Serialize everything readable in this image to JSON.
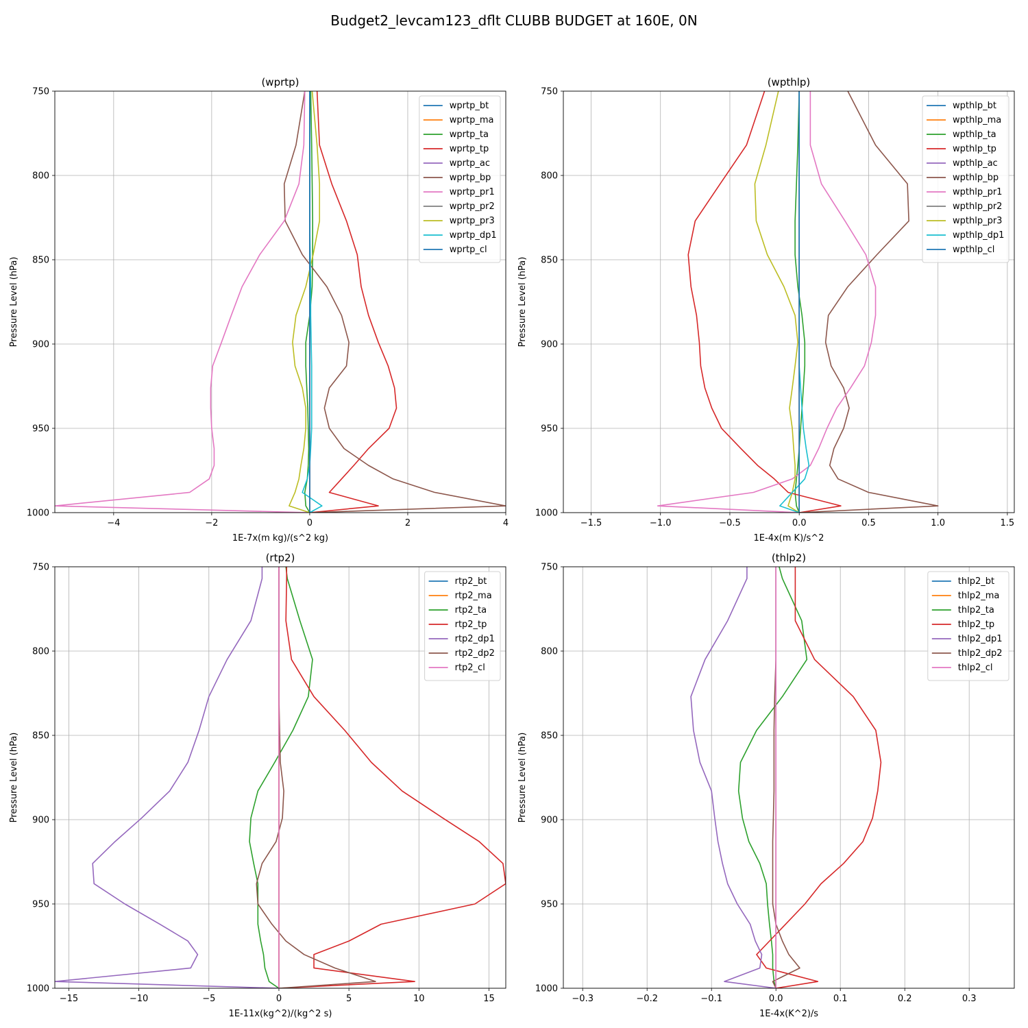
{
  "figure": {
    "title": "Budget2_levcam123_dflt CLUBB BUDGET at 160E, 0N"
  },
  "chart_data": [
    {
      "type": "line",
      "title": "(wprtp)",
      "xlabel": "1E-7x(m kg)/(s^2 kg)",
      "ylabel": "Pressure Level (hPa)",
      "xlim": [
        -5.2,
        4.0
      ],
      "ylim": [
        1000,
        750
      ],
      "xticks": [
        -4,
        -2,
        0,
        2,
        4
      ],
      "yticks": [
        750,
        800,
        850,
        900,
        950,
        1000
      ],
      "grid": true,
      "legend_loc": "upper right",
      "levels": [
        750,
        782,
        805,
        827,
        847,
        866,
        883,
        899,
        913,
        926,
        938,
        950,
        962,
        972,
        980,
        988,
        996,
        1000
      ],
      "series": [
        {
          "name": "wprtp_bt",
          "color": "#1f77b4",
          "values": [
            0,
            0,
            0,
            0,
            0,
            0,
            0,
            0,
            0,
            0,
            0,
            0,
            0,
            0,
            0,
            0,
            0,
            0
          ]
        },
        {
          "name": "wprtp_ma",
          "color": "#ff7f0e",
          "values": [
            0,
            0,
            0,
            0,
            0,
            0,
            0,
            0,
            0,
            0,
            0,
            0,
            0,
            0,
            0,
            0,
            0,
            0
          ]
        },
        {
          "name": "wprtp_ta",
          "color": "#2ca02c",
          "values": [
            0.02,
            0.04,
            0.05,
            0.06,
            0.06,
            0.05,
            0.0,
            -0.08,
            -0.08,
            -0.06,
            -0.04,
            -0.03,
            -0.02,
            -0.03,
            -0.05,
            -0.1,
            -0.08,
            0
          ]
        },
        {
          "name": "wprtp_tp",
          "color": "#d62728",
          "values": [
            0.15,
            0.2,
            0.45,
            0.75,
            0.97,
            1.05,
            1.2,
            1.4,
            1.6,
            1.73,
            1.77,
            1.62,
            1.2,
            0.9,
            0.65,
            0.4,
            1.4,
            0
          ]
        },
        {
          "name": "wprtp_ac",
          "color": "#9467bd",
          "values": [
            0,
            0,
            0,
            0,
            0,
            0,
            0,
            0,
            0,
            0,
            0,
            0,
            0,
            0,
            0,
            0,
            0,
            0
          ]
        },
        {
          "name": "wprtp_bp",
          "color": "#8c564b",
          "values": [
            -0.1,
            -0.28,
            -0.52,
            -0.5,
            -0.15,
            0.35,
            0.65,
            0.8,
            0.75,
            0.4,
            0.3,
            0.4,
            0.7,
            1.2,
            1.7,
            2.55,
            4.0,
            0
          ]
        },
        {
          "name": "wprtp_pr1",
          "color": "#e377c2",
          "values": [
            -0.1,
            -0.12,
            -0.22,
            -0.52,
            -1.02,
            -1.38,
            -1.6,
            -1.8,
            -1.98,
            -2.02,
            -2.02,
            -2.0,
            -1.95,
            -1.95,
            -2.05,
            -2.45,
            -5.2,
            0
          ]
        },
        {
          "name": "wprtp_pr2",
          "color": "#7f7f7f",
          "values": [
            0,
            0,
            0,
            0,
            0,
            0,
            0,
            0,
            0,
            0,
            0,
            0,
            0,
            0,
            0,
            0,
            0,
            0
          ]
        },
        {
          "name": "wprtp_pr3",
          "color": "#bcbd22",
          "values": [
            0.05,
            0.15,
            0.2,
            0.2,
            0.07,
            -0.08,
            -0.28,
            -0.35,
            -0.3,
            -0.15,
            -0.08,
            -0.08,
            -0.12,
            -0.18,
            -0.22,
            -0.3,
            -0.42,
            0
          ]
        },
        {
          "name": "wprtp_dp1",
          "color": "#17becf",
          "values": [
            0,
            0,
            0,
            0,
            0.01,
            0.02,
            0.02,
            0.03,
            0.04,
            0.04,
            0.04,
            0.04,
            0.02,
            0.0,
            -0.05,
            -0.15,
            0.25,
            0
          ]
        },
        {
          "name": "wprtp_cl",
          "color": "#1f77b4",
          "values": [
            0,
            0,
            0,
            0,
            0,
            0,
            0,
            0,
            0,
            0,
            0,
            0,
            0,
            0,
            0,
            0,
            0,
            0
          ]
        }
      ]
    },
    {
      "type": "line",
      "title": "(wpthlp)",
      "xlabel": "1E-4x(m K)/s^2",
      "ylabel": "Pressure Level (hPa)",
      "xlim": [
        -1.7,
        1.55
      ],
      "ylim": [
        1000,
        750
      ],
      "xticks": [
        -1.5,
        -1.0,
        -0.5,
        0.0,
        0.5,
        1.0,
        1.5
      ],
      "yticks": [
        750,
        800,
        850,
        900,
        950,
        1000
      ],
      "grid": true,
      "legend_loc": "upper right",
      "levels": [
        750,
        782,
        805,
        827,
        847,
        866,
        883,
        899,
        913,
        926,
        938,
        950,
        962,
        972,
        980,
        988,
        996,
        1000
      ],
      "series": [
        {
          "name": "wpthlp_bt",
          "color": "#1f77b4",
          "values": [
            0,
            0,
            0,
            0,
            0,
            0,
            0,
            0,
            0,
            0,
            0,
            0,
            0,
            0,
            0,
            0,
            0,
            0
          ]
        },
        {
          "name": "wpthlp_ma",
          "color": "#ff7f0e",
          "values": [
            0,
            0,
            0,
            0,
            0,
            0,
            0,
            0,
            0,
            0,
            0,
            0,
            0,
            0,
            0,
            0,
            0,
            0
          ]
        },
        {
          "name": "wpthlp_ta",
          "color": "#2ca02c",
          "values": [
            0,
            -0.01,
            -0.02,
            -0.03,
            -0.03,
            -0.01,
            0.02,
            0.04,
            0.04,
            0.03,
            0.02,
            0.01,
            0.0,
            -0.01,
            -0.02,
            -0.03,
            -0.02,
            0
          ]
        },
        {
          "name": "wpthlp_tp",
          "color": "#d62728",
          "values": [
            -0.25,
            -0.38,
            -0.57,
            -0.75,
            -0.8,
            -0.78,
            -0.74,
            -0.72,
            -0.71,
            -0.68,
            -0.63,
            -0.56,
            -0.42,
            -0.3,
            -0.18,
            -0.08,
            0.3,
            0
          ]
        },
        {
          "name": "wpthlp_ac",
          "color": "#9467bd",
          "values": [
            0,
            0,
            0,
            0,
            0,
            0,
            0,
            0,
            0,
            0,
            0,
            0,
            0,
            0,
            0,
            0,
            0,
            0
          ]
        },
        {
          "name": "wpthlp_bp",
          "color": "#8c564b",
          "values": [
            0.35,
            0.55,
            0.78,
            0.79,
            0.56,
            0.35,
            0.21,
            0.19,
            0.23,
            0.32,
            0.36,
            0.32,
            0.25,
            0.22,
            0.28,
            0.5,
            1.0,
            0
          ]
        },
        {
          "name": "wpthlp_pr1",
          "color": "#e377c2",
          "values": [
            0.08,
            0.08,
            0.16,
            0.33,
            0.48,
            0.55,
            0.55,
            0.52,
            0.47,
            0.37,
            0.27,
            0.2,
            0.14,
            0.08,
            -0.05,
            -0.33,
            -1.02,
            0
          ]
        },
        {
          "name": "wpthlp_pr2",
          "color": "#7f7f7f",
          "values": [
            0,
            0,
            0,
            0,
            0,
            0,
            0,
            0,
            0,
            0,
            0,
            0,
            0,
            0,
            0,
            0,
            0,
            0
          ]
        },
        {
          "name": "wpthlp_pr3",
          "color": "#bcbd22",
          "values": [
            -0.15,
            -0.24,
            -0.32,
            -0.31,
            -0.23,
            -0.11,
            -0.03,
            -0.01,
            -0.03,
            -0.05,
            -0.07,
            -0.05,
            -0.04,
            -0.03,
            -0.03,
            -0.05,
            -0.08,
            0
          ]
        },
        {
          "name": "wpthlp_dp1",
          "color": "#17becf",
          "values": [
            0,
            0,
            0,
            0,
            0,
            0,
            0,
            0,
            0,
            0.01,
            0.02,
            0.03,
            0.05,
            0.07,
            0.04,
            -0.05,
            -0.14,
            0
          ]
        },
        {
          "name": "wpthlp_cl",
          "color": "#1f77b4",
          "values": [
            0,
            0,
            0,
            0,
            0,
            0,
            0,
            0,
            0,
            0,
            0,
            0,
            0,
            0,
            0,
            0,
            0,
            0
          ]
        }
      ]
    },
    {
      "type": "line",
      "title": "(rtp2)",
      "xlabel": "1E-11x(kg^2)/(kg^2 s)",
      "ylabel": "Pressure Level (hPa)",
      "xlim": [
        -16,
        16.2
      ],
      "ylim": [
        1000,
        750
      ],
      "xticks": [
        -15,
        -10,
        -5,
        0,
        5,
        10,
        15
      ],
      "yticks": [
        750,
        800,
        850,
        900,
        950,
        1000
      ],
      "grid": true,
      "legend_loc": "upper right",
      "levels": [
        750,
        757,
        782,
        805,
        827,
        847,
        866,
        883,
        899,
        913,
        926,
        938,
        950,
        962,
        972,
        980,
        988,
        996,
        1000
      ],
      "series": [
        {
          "name": "rtp2_bt",
          "color": "#1f77b4",
          "values": [
            0,
            0,
            0,
            0,
            0,
            0,
            0,
            0,
            0,
            0,
            0,
            0,
            0,
            0,
            0,
            0,
            0,
            0,
            0
          ]
        },
        {
          "name": "rtp2_ma",
          "color": "#ff7f0e",
          "values": [
            0,
            0,
            0,
            0,
            0,
            0,
            0,
            0,
            0,
            0,
            0,
            0,
            0,
            0,
            0,
            0,
            0,
            0,
            0
          ]
        },
        {
          "name": "rtp2_ta",
          "color": "#2ca02c",
          "values": [
            0.5,
            0.6,
            1.5,
            2.4,
            2.1,
            1.0,
            -0.3,
            -1.5,
            -2.0,
            -2.1,
            -1.8,
            -1.5,
            -1.5,
            -1.5,
            -1.3,
            -1.1,
            -1.0,
            -0.7,
            0
          ]
        },
        {
          "name": "rtp2_tp",
          "color": "#d62728",
          "values": [
            0.55,
            0.55,
            0.5,
            0.9,
            2.5,
            4.7,
            6.6,
            8.8,
            11.7,
            14.3,
            16.0,
            16.2,
            14.0,
            7.3,
            5.0,
            2.5,
            2.5,
            9.7,
            0
          ]
        },
        {
          "name": "rtp2_dp1",
          "color": "#9467bd",
          "values": [
            -1.2,
            -1.2,
            -2.0,
            -3.7,
            -5.0,
            -5.7,
            -6.5,
            -7.8,
            -9.8,
            -11.7,
            -13.3,
            -13.2,
            -11.0,
            -8.5,
            -6.5,
            -5.8,
            -6.3,
            -16.0,
            0
          ]
        },
        {
          "name": "rtp2_dp2",
          "color": "#8c564b",
          "values": [
            0,
            0,
            0,
            0,
            0,
            0.05,
            0.1,
            0.35,
            0.25,
            -0.2,
            -1.2,
            -1.6,
            -1.5,
            -0.5,
            0.5,
            1.8,
            4.0,
            6.9,
            0
          ]
        },
        {
          "name": "rtp2_cl",
          "color": "#e377c2",
          "values": [
            0,
            0,
            0,
            0,
            0,
            0,
            0,
            0,
            0,
            0,
            0,
            0,
            0,
            0,
            0,
            0,
            0,
            0,
            0
          ]
        }
      ]
    },
    {
      "type": "line",
      "title": "(thlp2)",
      "xlabel": "1E-4x(K^2)/s",
      "ylabel": "Pressure Level (hPa)",
      "xlim": [
        -0.33,
        0.37
      ],
      "ylim": [
        1000,
        750
      ],
      "xticks": [
        -0.3,
        -0.2,
        -0.1,
        0.0,
        0.1,
        0.2,
        0.3
      ],
      "yticks": [
        750,
        800,
        850,
        900,
        950,
        1000
      ],
      "grid": true,
      "legend_loc": "upper right",
      "levels": [
        750,
        757,
        782,
        805,
        827,
        847,
        866,
        883,
        899,
        913,
        926,
        938,
        950,
        962,
        972,
        980,
        988,
        996,
        1000
      ],
      "series": [
        {
          "name": "thlp2_bt",
          "color": "#1f77b4",
          "values": [
            0,
            0,
            0,
            0,
            0,
            0,
            0,
            0,
            0,
            0,
            0,
            0,
            0,
            0,
            0,
            0,
            0,
            0,
            0
          ]
        },
        {
          "name": "thlp2_ma",
          "color": "#ff7f0e",
          "values": [
            0,
            0,
            0,
            0,
            0,
            0,
            0,
            0,
            0,
            0,
            0,
            0,
            0,
            0,
            0,
            0,
            0,
            0,
            0
          ]
        },
        {
          "name": "thlp2_ta",
          "color": "#2ca02c",
          "values": [
            0.005,
            0.01,
            0.04,
            0.048,
            0.01,
            -0.03,
            -0.055,
            -0.058,
            -0.052,
            -0.042,
            -0.025,
            -0.015,
            -0.013,
            -0.01,
            -0.007,
            -0.005,
            -0.005,
            -0.003,
            0
          ]
        },
        {
          "name": "thlp2_tp",
          "color": "#d62728",
          "values": [
            0.03,
            0.03,
            0.03,
            0.06,
            0.12,
            0.155,
            0.163,
            0.158,
            0.15,
            0.135,
            0.105,
            0.07,
            0.045,
            0.015,
            -0.01,
            -0.03,
            -0.015,
            0.065,
            0
          ]
        },
        {
          "name": "thlp2_dp1",
          "color": "#9467bd",
          "values": [
            -0.045,
            -0.045,
            -0.075,
            -0.11,
            -0.132,
            -0.128,
            -0.118,
            -0.1,
            -0.095,
            -0.09,
            -0.083,
            -0.075,
            -0.06,
            -0.04,
            -0.032,
            -0.022,
            -0.025,
            -0.08,
            0
          ]
        },
        {
          "name": "thlp2_dp2",
          "color": "#8c564b",
          "values": [
            0,
            0,
            0,
            0,
            -0.002,
            -0.003,
            -0.003,
            -0.003,
            -0.004,
            -0.005,
            -0.005,
            -0.005,
            -0.005,
            0.0,
            0.01,
            0.02,
            0.037,
            -0.005,
            0
          ]
        },
        {
          "name": "thlp2_cl",
          "color": "#e377c2",
          "values": [
            0,
            0,
            0,
            0,
            0,
            0,
            0,
            0,
            0,
            0,
            0,
            0,
            0,
            0,
            0,
            0,
            0,
            0,
            0
          ]
        }
      ]
    }
  ]
}
